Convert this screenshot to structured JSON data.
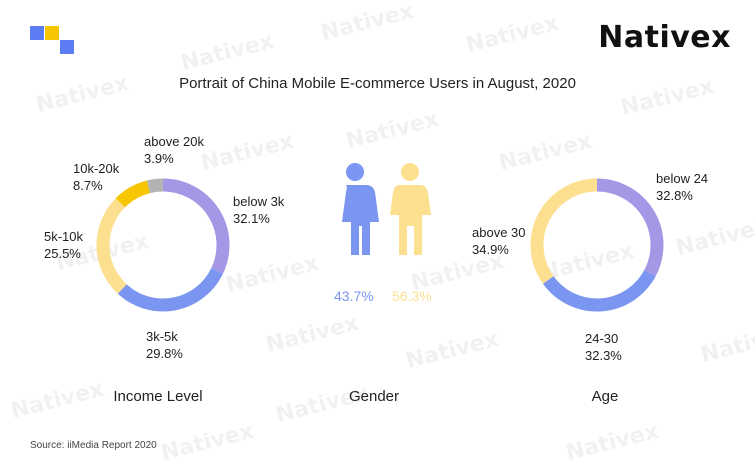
{
  "brand": "Nativex",
  "watermark": "Nativex",
  "colors": {
    "purple": "#a497e6",
    "blue": "#7b96f0",
    "light_yellow": "#fcdf8f",
    "yellow": "#f7c600",
    "gray": "#b3b3b3",
    "logo_blue": "#5b7cf2",
    "logo_yellow": "#f7c600"
  },
  "title": "Portrait of China Mobile E-commerce Users in August, 2020",
  "chart_data": [
    {
      "type": "pie",
      "donut": true,
      "caption": "Income Level",
      "slices": [
        {
          "name": "below 3k",
          "value": 32.1,
          "label": "32.1%",
          "color": "#a497e6"
        },
        {
          "name": "3k-5k",
          "value": 29.8,
          "label": "29.8%",
          "color": "#7b96f0"
        },
        {
          "name": "5k-10k",
          "value": 25.5,
          "label": "25.5%",
          "color": "#fcdf8f"
        },
        {
          "name": "10k-20k",
          "value": 8.7,
          "label": "8.7%",
          "color": "#f7c600"
        },
        {
          "name": "above 20k",
          "value": 3.9,
          "label": "3.9%",
          "color": "#b3b3b3"
        }
      ]
    },
    {
      "type": "bar",
      "caption": "Gender",
      "categories": [
        "male",
        "female"
      ],
      "values": [
        43.7,
        56.3
      ],
      "labels": [
        "43.7%",
        "56.3%"
      ],
      "colors": [
        "#7b96f0",
        "#fcdf8f"
      ]
    },
    {
      "type": "pie",
      "donut": true,
      "caption": "Age",
      "slices": [
        {
          "name": "below 24",
          "value": 32.8,
          "label": "32.8%",
          "color": "#a497e6"
        },
        {
          "name": "24-30",
          "value": 32.3,
          "label": "32.3%",
          "color": "#7b96f0"
        },
        {
          "name": "above 30",
          "value": 34.9,
          "label": "34.9%",
          "color": "#fcdf8f"
        }
      ]
    }
  ],
  "source": "Source: iiMedia Report 2020"
}
